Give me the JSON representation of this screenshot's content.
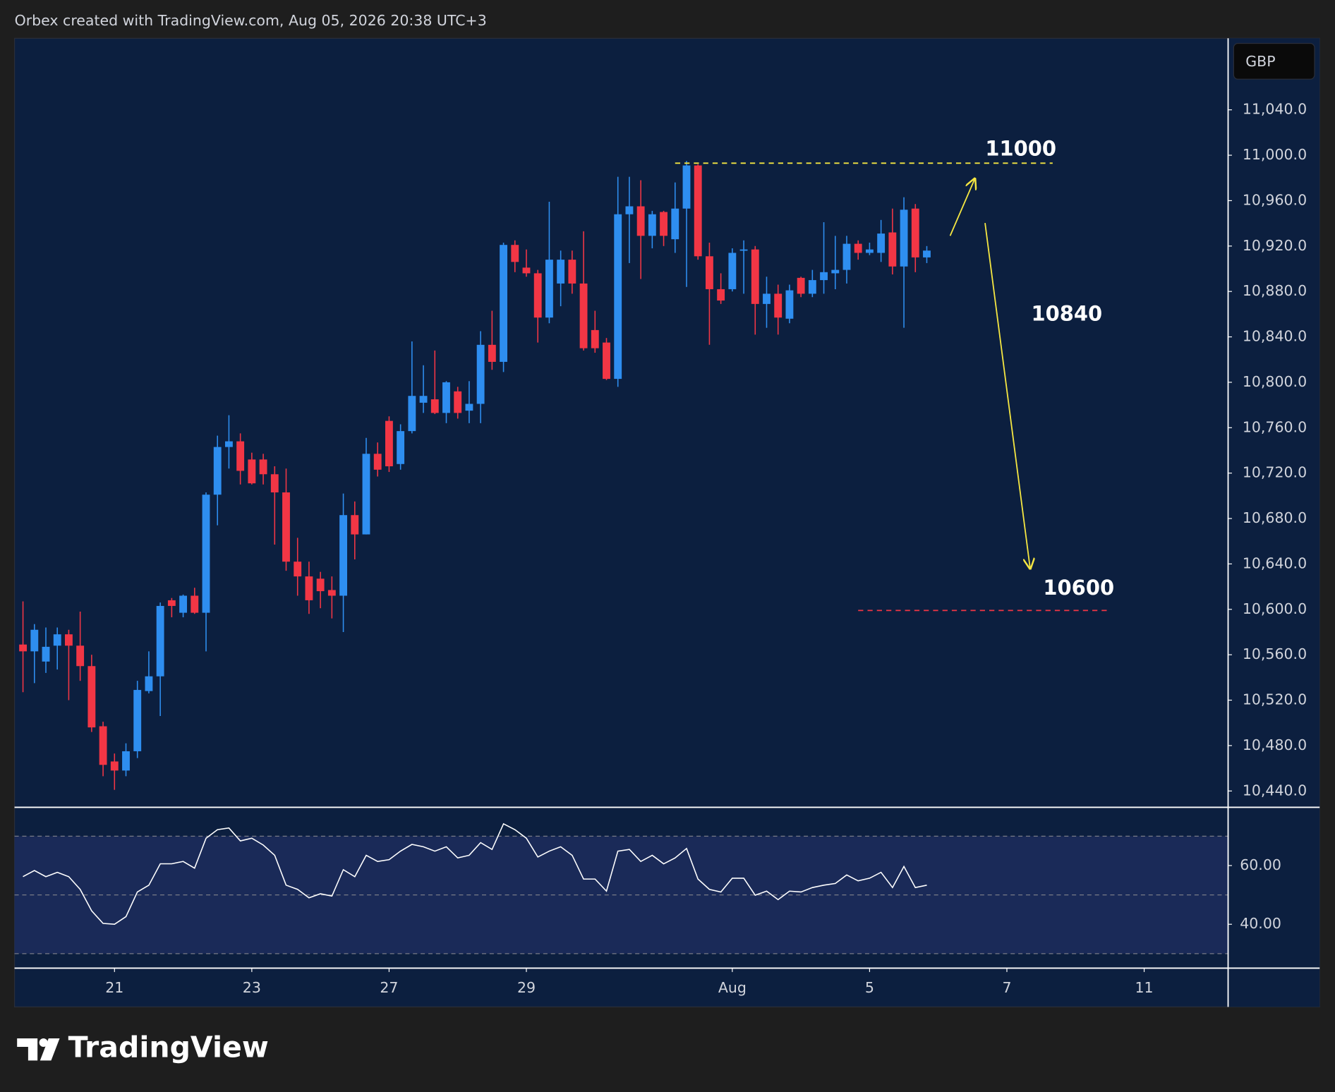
{
  "header": {
    "text": "Orbex created with TradingView.com, Aug 05, 2026 20:38 UTC+3"
  },
  "chart_data": {
    "type": "candlestick",
    "currency": "GBP",
    "open": [
      10569,
      10563,
      10554,
      10568,
      10578,
      10568,
      10550,
      10497,
      10466,
      10458,
      10475,
      10528,
      10541,
      10608,
      10597,
      10612,
      10597,
      10701,
      10743,
      10748,
      10732,
      10732,
      10719,
      10703,
      10642,
      10629,
      10627,
      10617,
      10612,
      10683,
      10666,
      10737,
      10766,
      10728,
      10757,
      10782,
      10785,
      10773,
      10792,
      10775,
      10781,
      10833,
      10818,
      10921,
      10901,
      10896,
      10857,
      10887,
      10908,
      10887,
      10846,
      10835,
      10803,
      10948,
      10955,
      10929,
      10950,
      10926,
      10953,
      10991,
      10911,
      10882,
      10882,
      10916,
      10917,
      10869,
      10878,
      10856,
      10892,
      10878,
      10890,
      10896,
      10899,
      10922,
      10914,
      10914,
      10932,
      10902,
      10953,
      10910
    ],
    "high": [
      10607,
      10587,
      10584,
      10584,
      10582,
      10598,
      10560,
      10501,
      10473,
      10482,
      10537,
      10563,
      10606,
      10610,
      10613,
      10619,
      10703,
      10753,
      10771,
      10755,
      10738,
      10737,
      10726,
      10724,
      10663,
      10642,
      10633,
      10629,
      10702,
      10695,
      10751,
      10747,
      10770,
      10763,
      10836,
      10815,
      10828,
      10801,
      10796,
      10801,
      10845,
      10863,
      10923,
      10925,
      10917,
      10899,
      10959,
      10916,
      10916,
      10933,
      10863,
      10839,
      10981,
      10981,
      10978,
      10951,
      10951,
      10976,
      10995,
      10992,
      10923,
      10896,
      10918,
      10925,
      10920,
      10893,
      10886,
      10886,
      10893,
      10899,
      10941,
      10929,
      10929,
      10925,
      10923,
      10943,
      10953,
      10963,
      10957,
      10920
    ],
    "low": [
      10527,
      10535,
      10544,
      10547,
      10520,
      10537,
      10492,
      10453,
      10441,
      10453,
      10469,
      10526,
      10506,
      10593,
      10593,
      10596,
      10563,
      10674,
      10724,
      10710,
      10710,
      10710,
      10657,
      10634,
      10612,
      10596,
      10601,
      10592,
      10580,
      10644,
      10666,
      10717,
      10721,
      10723,
      10755,
      10773,
      10772,
      10764,
      10768,
      10764,
      10764,
      10811,
      10809,
      10897,
      10893,
      10835,
      10852,
      10867,
      10878,
      10828,
      10826,
      10802,
      10796,
      10905,
      10891,
      10918,
      10920,
      10914,
      10884,
      10908,
      10833,
      10869,
      10880,
      10878,
      10842,
      10848,
      10842,
      10852,
      10875,
      10875,
      10878,
      10882,
      10887,
      10908,
      10912,
      10906,
      10895,
      10848,
      10897,
      10905
    ],
    "close": [
      10563,
      10582,
      10567,
      10578,
      10568,
      10550,
      10496,
      10463,
      10458,
      10475,
      10529,
      10541,
      10603,
      10603,
      10612,
      10597,
      10701,
      10743,
      10748,
      10722,
      10711,
      10719,
      10703,
      10642,
      10629,
      10608,
      10616,
      10612,
      10683,
      10666,
      10737,
      10723,
      10726,
      10757,
      10788,
      10788,
      10773,
      10800,
      10773,
      10781,
      10833,
      10818,
      10921,
      10906,
      10896,
      10857,
      10908,
      10908,
      10887,
      10830,
      10830,
      10803,
      10948,
      10955,
      10929,
      10948,
      10929,
      10953,
      10991,
      10911,
      10882,
      10872,
      10914,
      10917,
      10869,
      10878,
      10857,
      10881,
      10878,
      10890,
      10897,
      10899,
      10922,
      10914,
      10917,
      10931,
      10902,
      10952,
      10910,
      10916
    ],
    "up_color": "#2e8ef0",
    "down_color": "#f23645",
    "ylim": [
      10426,
      11103
    ],
    "yticks": [
      {
        "value": 10440,
        "label": "10,440.0"
      },
      {
        "value": 10480,
        "label": "10,480.0"
      },
      {
        "value": 10520,
        "label": "10,520.0"
      },
      {
        "value": 10560,
        "label": "10,560.0"
      },
      {
        "value": 10600,
        "label": "10,600.0"
      },
      {
        "value": 10640,
        "label": "10,640.0"
      },
      {
        "value": 10680,
        "label": "10,680.0"
      },
      {
        "value": 10720,
        "label": "10,720.0"
      },
      {
        "value": 10760,
        "label": "10,760.0"
      },
      {
        "value": 10800,
        "label": "10,800.0"
      },
      {
        "value": 10840,
        "label": "10,840.0"
      },
      {
        "value": 10880,
        "label": "10,880.0"
      },
      {
        "value": 10920,
        "label": "10,920.0"
      },
      {
        "value": 10960,
        "label": "10,960.0"
      },
      {
        "value": 11000,
        "label": "11,000.0"
      },
      {
        "value": 11040,
        "label": "11,040.0"
      }
    ],
    "xlim": [
      -0.74,
      105.3
    ],
    "xticks": [
      {
        "value": 8,
        "label": "21"
      },
      {
        "value": 20,
        "label": "23"
      },
      {
        "value": 32,
        "label": "27"
      },
      {
        "value": 44,
        "label": "29"
      },
      {
        "value": 62,
        "label": "Aug"
      },
      {
        "value": 74,
        "label": "5"
      },
      {
        "value": 86,
        "label": "7"
      },
      {
        "value": 98,
        "label": "11"
      }
    ],
    "annotations": [
      {
        "label": "11000",
        "value": 10993,
        "from": 57,
        "to": 90,
        "color": "#f5e642"
      },
      {
        "label": "10600",
        "value": 10599,
        "from": 73,
        "to": 95,
        "color": "#f23645"
      }
    ],
    "target_label": "10840",
    "indicator": {
      "type": "line",
      "color": "#ffffff",
      "values": [
        56.2,
        58.3,
        56.2,
        57.7,
        56.2,
        51.9,
        44.6,
        40.3,
        40.0,
        42.6,
        51.0,
        53.3,
        60.6,
        60.6,
        61.4,
        59.1,
        69.3,
        72.2,
        72.8,
        68.4,
        69.3,
        67.0,
        63.5,
        53.3,
        51.9,
        49.0,
        50.4,
        49.6,
        58.6,
        56.2,
        63.5,
        61.4,
        62.0,
        64.9,
        67.2,
        66.4,
        64.9,
        66.4,
        62.6,
        63.5,
        67.8,
        65.5,
        74.2,
        72.2,
        69.3,
        62.9,
        64.9,
        66.4,
        63.5,
        55.4,
        55.4,
        51.3,
        64.9,
        65.5,
        61.4,
        63.5,
        60.6,
        62.6,
        65.8,
        55.4,
        51.9,
        51.0,
        55.7,
        55.7,
        49.9,
        51.3,
        48.4,
        51.3,
        51.0,
        52.5,
        53.3,
        53.9,
        56.8,
        54.8,
        55.7,
        57.7,
        52.5,
        59.7,
        52.5,
        53.3
      ],
      "ylim": [
        25.2,
        79.4
      ],
      "yticks": [
        {
          "value": 60,
          "label": "60.00"
        },
        {
          "value": 40,
          "label": "40.00"
        }
      ],
      "levels": [
        70,
        50,
        30
      ]
    }
  },
  "footer": {
    "brand": "TradingView"
  }
}
